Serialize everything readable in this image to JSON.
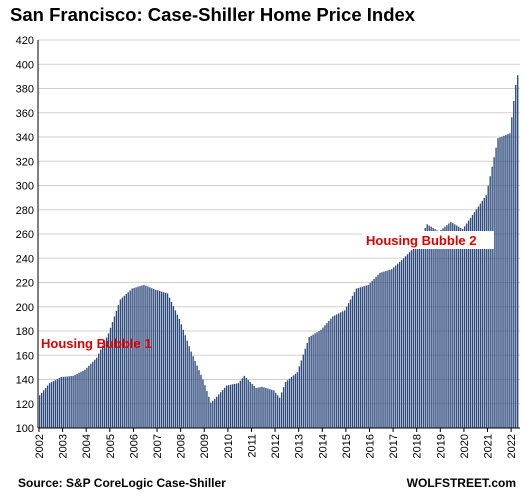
{
  "chart_data": {
    "type": "bar",
    "title": "San Francisco: Case-Shiller Home Price Index",
    "xlabel": "",
    "ylabel": "",
    "ylim": [
      100,
      420
    ],
    "yticks": [
      100,
      120,
      140,
      160,
      180,
      200,
      220,
      240,
      260,
      280,
      300,
      320,
      340,
      360,
      380,
      400,
      420
    ],
    "xticks": [
      "2002",
      "2003",
      "2004",
      "2005",
      "2006",
      "2007",
      "2008",
      "2009",
      "2010",
      "2011",
      "2012",
      "2013",
      "2014",
      "2015",
      "2016",
      "2017",
      "2018",
      "2019",
      "2020",
      "2021",
      "2022"
    ],
    "x_start": "2002-01",
    "frequency": "monthly",
    "grid": true,
    "bar_color": "#2e4a7d",
    "anchors": [
      [
        "2002-01",
        127
      ],
      [
        "2002-06",
        137
      ],
      [
        "2002-12",
        142
      ],
      [
        "2003-06",
        143
      ],
      [
        "2003-12",
        148
      ],
      [
        "2004-06",
        158
      ],
      [
        "2004-12",
        178
      ],
      [
        "2005-06",
        206
      ],
      [
        "2005-12",
        215
      ],
      [
        "2006-06",
        218
      ],
      [
        "2006-12",
        214
      ],
      [
        "2007-06",
        211
      ],
      [
        "2007-12",
        190
      ],
      [
        "2008-06",
        163
      ],
      [
        "2008-12",
        140
      ],
      [
        "2009-04",
        121
      ],
      [
        "2009-06",
        124
      ],
      [
        "2009-12",
        135
      ],
      [
        "2010-06",
        137
      ],
      [
        "2010-09",
        143
      ],
      [
        "2011-03",
        133
      ],
      [
        "2011-06",
        134
      ],
      [
        "2011-12",
        131
      ],
      [
        "2012-03",
        125
      ],
      [
        "2012-06",
        138
      ],
      [
        "2012-12",
        146
      ],
      [
        "2013-06",
        175
      ],
      [
        "2013-12",
        181
      ],
      [
        "2014-06",
        192
      ],
      [
        "2014-12",
        197
      ],
      [
        "2015-06",
        215
      ],
      [
        "2015-12",
        218
      ],
      [
        "2016-06",
        228
      ],
      [
        "2016-12",
        231
      ],
      [
        "2017-06",
        240
      ],
      [
        "2017-12",
        250
      ],
      [
        "2018-06",
        268
      ],
      [
        "2018-12",
        262
      ],
      [
        "2019-06",
        270
      ],
      [
        "2019-12",
        264
      ],
      [
        "2020-06",
        278
      ],
      [
        "2020-12",
        292
      ],
      [
        "2021-06",
        339
      ],
      [
        "2021-12",
        343
      ],
      [
        "2022-03",
        383
      ],
      [
        "2022-04",
        391
      ]
    ],
    "annotations": [
      {
        "text": "Housing Bubble 1",
        "color": "#e00000"
      },
      {
        "text": "Housing Bubble 2",
        "color": "#e00000"
      }
    ]
  },
  "source": "Source: S&P CoreLogic Case-Shiller",
  "brand": "WOLFSTREET.com"
}
